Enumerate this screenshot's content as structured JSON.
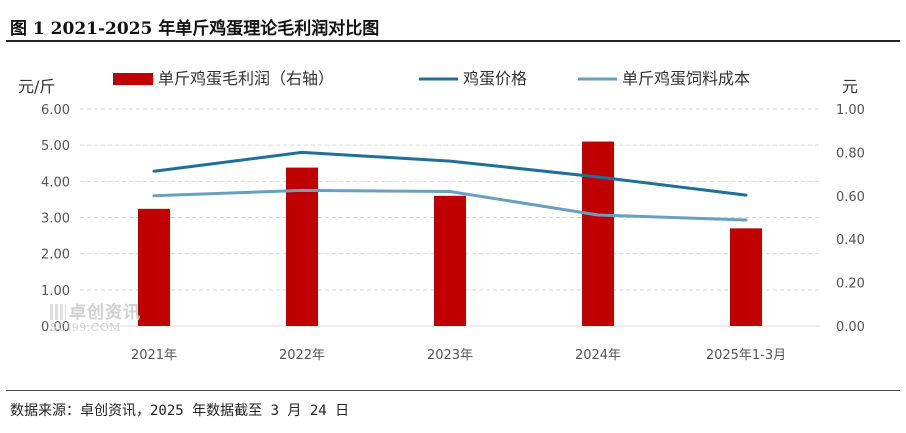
{
  "title": "图 1  2021-2025 年单斤鸡蛋理论毛利润对比图",
  "source": "数据来源：卓创资讯，2025 年数据截至 3 月 24 日",
  "watermark": {
    "main": "卓创资讯",
    "sub": "SCI99.COM"
  },
  "colors": {
    "bar": "#c00000",
    "price_line": "#1f6f99",
    "cost_line": "#6b9fbf",
    "grid": "#d9d9d9"
  },
  "chart_data": {
    "type": "bar",
    "categories": [
      "2021年",
      "2022年",
      "2023年",
      "2024年",
      "2025年1-3月"
    ],
    "left_axis": {
      "unit": "元/斤",
      "ylim": [
        0,
        6
      ],
      "ticks": [
        "0.00",
        "1.00",
        "2.00",
        "3.00",
        "4.00",
        "5.00",
        "6.00"
      ]
    },
    "right_axis": {
      "unit": "元",
      "ylim": [
        0,
        1
      ],
      "ticks": [
        "0.00",
        "0.20",
        "0.40",
        "0.60",
        "0.80",
        "1.00"
      ]
    },
    "series": [
      {
        "name": "单斤鸡蛋毛利润（右轴）",
        "type": "bar",
        "axis": "right",
        "values": [
          0.54,
          0.73,
          0.6,
          0.85,
          0.45
        ]
      },
      {
        "name": "鸡蛋价格",
        "type": "line",
        "axis": "left",
        "values": [
          4.28,
          4.8,
          4.56,
          4.12,
          3.62
        ]
      },
      {
        "name": "单斤鸡蛋饲料成本",
        "type": "line",
        "axis": "left",
        "values": [
          3.6,
          3.75,
          3.72,
          3.07,
          2.93
        ]
      }
    ],
    "grid": true,
    "legend_position": "top"
  }
}
